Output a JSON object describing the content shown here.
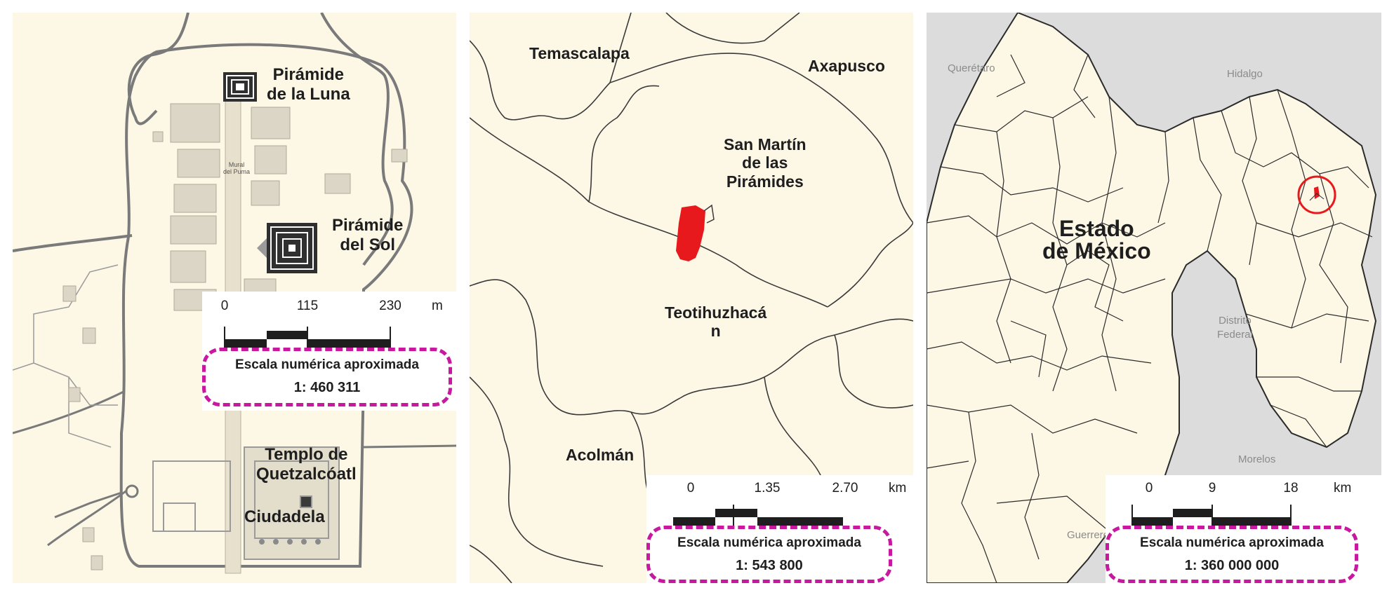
{
  "maps": {
    "site": {
      "labels": {
        "luna": "Pirámide\nde la Luna",
        "sol": "Pirámide\ndel Sol",
        "templo": "Templo de\nQuetzalcóatl",
        "ciudadela": "Ciudadela",
        "mural": "Mural\ndel Puma"
      },
      "scale": {
        "ticks": [
          "0",
          "115",
          "230"
        ],
        "unit": "m",
        "caption": "Escala numérica aproximada",
        "ratio": "1: 460 311"
      }
    },
    "municipal": {
      "labels": {
        "temascalapa": "Temascalapa",
        "axapusco": "Axapusco",
        "san_martin": "San Martín\nde las\nPirámides",
        "teotihuacan": "Teotihuzhacá\nn",
        "acolman": "Acolmán"
      },
      "highlight_color": "#e8191c",
      "scale": {
        "ticks": [
          "0",
          "1.35",
          "2.70"
        ],
        "unit": "km",
        "caption": "Escala numérica aproximada",
        "ratio": "1: 543 800"
      }
    },
    "state": {
      "labels": {
        "estado": "Estado\nde México",
        "queretaro": "Querétaro",
        "hidalgo": "Hidalgo",
        "distrito": "Distrito\nFederal",
        "morelos": "Morelos",
        "guerrero": "Guerrero"
      },
      "marker_color": "#e8191c",
      "scale": {
        "ticks": [
          "0",
          "9",
          "18"
        ],
        "unit": "km",
        "caption": "Escala numérica aproximada",
        "ratio": "1: 360 000 000"
      }
    }
  },
  "colors": {
    "land": "#fdf7e6",
    "outside": "#dcdcdc",
    "accent_dashed": "#c8189f",
    "roads": "#7a7a7a"
  }
}
